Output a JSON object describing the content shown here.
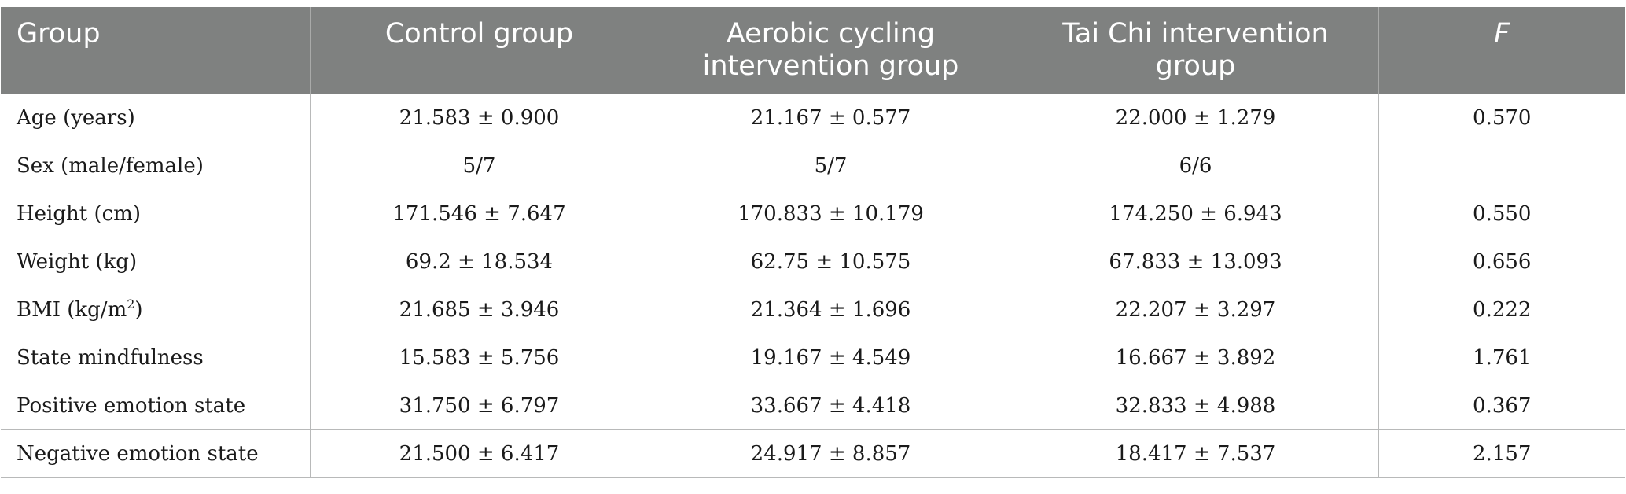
{
  "table": {
    "headers": [
      "Group",
      "Control group",
      "Aerobic cycling intervention group",
      "Tai Chi intervention group",
      "F"
    ],
    "rows": [
      {
        "label": "Age (years)",
        "cells": [
          "21.583 ± 0.900",
          "21.167 ± 0.577",
          "22.000 ± 1.279",
          "0.570"
        ]
      },
      {
        "label": "Sex (male/female)",
        "cells": [
          "5/7",
          "5/7",
          "6/6",
          ""
        ]
      },
      {
        "label": "Height (cm)",
        "cells": [
          "171.546 ± 7.647",
          "170.833 ± 10.179",
          "174.250 ± 6.943",
          "0.550"
        ]
      },
      {
        "label": "Weight (kg)",
        "cells": [
          "69.2 ± 18.534",
          "62.75 ± 10.575",
          "67.833 ± 13.093",
          "0.656"
        ]
      },
      {
        "label_prefix": "BMI (kg/m",
        "label_sup": "2",
        "label_suffix": ")",
        "cells": [
          "21.685 ± 3.946",
          "21.364 ± 1.696",
          "22.207 ± 3.297",
          "0.222"
        ]
      },
      {
        "label": "State mindfulness",
        "cells": [
          "15.583 ± 5.756",
          "19.167 ± 4.549",
          "16.667 ± 3.892",
          "1.761"
        ]
      },
      {
        "label": "Positive emotion state",
        "cells": [
          "31.750 ± 6.797",
          "33.667 ± 4.418",
          "32.833 ± 4.988",
          "0.367"
        ]
      },
      {
        "label": "Negative emotion state",
        "cells": [
          "21.500 ± 6.417",
          "24.917 ± 8.857",
          "18.417 ± 7.537",
          "2.157"
        ]
      }
    ]
  }
}
